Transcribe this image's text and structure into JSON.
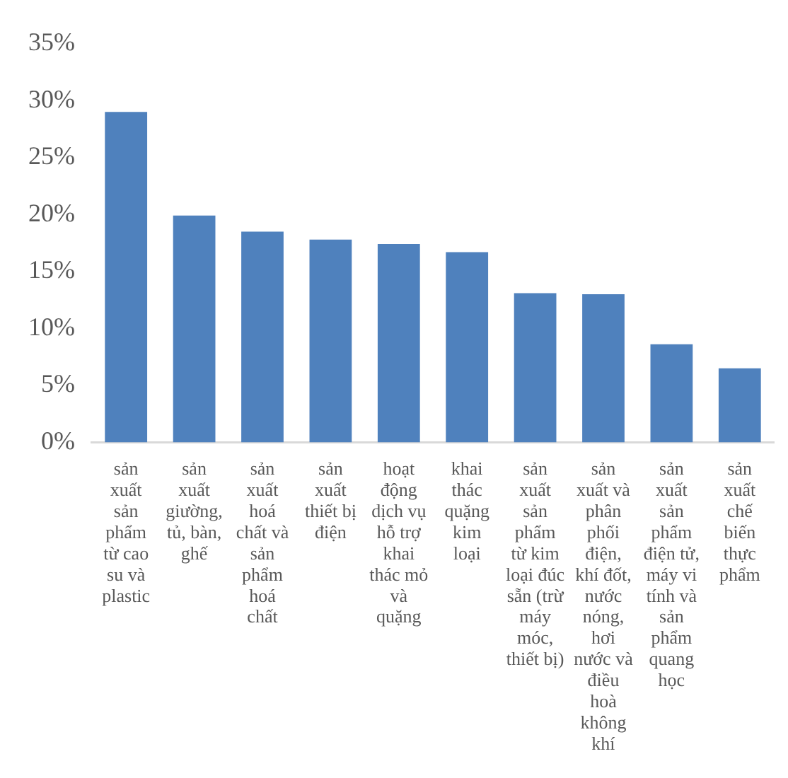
{
  "chart_data": {
    "type": "bar",
    "categories": [
      "sản xuất sản phẩm từ cao su và plastic",
      "sản xuất giường, tủ, bàn, ghế",
      "sản xuất hoá chất và sản phẩm hoá chất",
      "sản xuất thiết bị điện",
      "hoạt động dịch vụ hỗ trợ khai thác mỏ và quặng",
      "khai thác quặng kim loại",
      "sản xuất sản phẩm từ kim loại đúc sẵn (trừ máy móc, thiết bị)",
      "sản xuất và phân phối điện, khí đốt, nước nóng, hơi nước và điều hoà không khí",
      "sản xuất sản phẩm điện tử, máy vi tính và sản phẩm quang học",
      "sản xuất chế biến thực phẩm"
    ],
    "values": [
      29.0,
      19.9,
      18.5,
      17.8,
      17.4,
      16.7,
      13.1,
      13.0,
      8.6,
      6.5
    ],
    "color": "#4f81bd",
    "ylim": [
      0,
      35
    ],
    "yticks": [
      {
        "value": 0,
        "label": "0%"
      },
      {
        "value": 5,
        "label": "5%"
      },
      {
        "value": 10,
        "label": "10%"
      },
      {
        "value": 15,
        "label": "15%"
      },
      {
        "value": 20,
        "label": "20%"
      },
      {
        "value": 25,
        "label": "25%"
      },
      {
        "value": 30,
        "label": "30%"
      },
      {
        "value": 35,
        "label": "35%"
      }
    ],
    "grid": false,
    "legend": false
  }
}
